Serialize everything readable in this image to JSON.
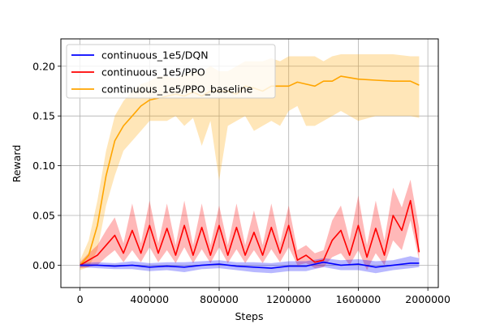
{
  "chart_data": {
    "type": "line",
    "xlabel": "Steps",
    "ylabel": "Reward",
    "xlim": [
      -110000,
      2060000
    ],
    "ylim": [
      -0.0225,
      0.2275
    ],
    "xticks": [
      0,
      400000,
      800000,
      1200000,
      1600000,
      2000000
    ],
    "xtick_labels": [
      "0",
      "400000",
      "800000",
      "1200000",
      "1600000",
      "2000000"
    ],
    "yticks": [
      0.0,
      0.05,
      0.1,
      0.15,
      0.2
    ],
    "ytick_labels": [
      "0.00",
      "0.05",
      "0.10",
      "0.15",
      "0.20"
    ],
    "grid": true,
    "legend_position": "top-left",
    "series": [
      {
        "name": "continuous_1e5/DQN",
        "color": "#0000ff",
        "band_color": "#0000ff",
        "x": [
          0,
          100000,
          200000,
          300000,
          400000,
          500000,
          600000,
          700000,
          800000,
          900000,
          1000000,
          1100000,
          1200000,
          1300000,
          1400000,
          1500000,
          1600000,
          1700000,
          1800000,
          1900000,
          1950000
        ],
        "y": [
          0.0,
          0.0,
          -0.001,
          0.0,
          -0.002,
          -0.001,
          -0.002,
          0.0,
          0.001,
          -0.001,
          -0.002,
          -0.003,
          -0.001,
          -0.001,
          0.003,
          0.0,
          0.001,
          -0.002,
          0.0,
          0.002,
          0.002
        ],
        "lower": [
          -0.002,
          -0.003,
          -0.004,
          -0.004,
          -0.006,
          -0.005,
          -0.007,
          -0.004,
          -0.003,
          -0.005,
          -0.007,
          -0.008,
          -0.006,
          -0.006,
          -0.002,
          -0.005,
          -0.005,
          -0.008,
          -0.005,
          -0.003,
          -0.002
        ],
        "upper": [
          0.002,
          0.003,
          0.002,
          0.004,
          0.002,
          0.003,
          0.003,
          0.004,
          0.005,
          0.003,
          0.003,
          0.002,
          0.004,
          0.004,
          0.007,
          0.005,
          0.006,
          0.004,
          0.005,
          0.009,
          0.007
        ]
      },
      {
        "name": "continuous_1e5/PPO",
        "color": "#ff0000",
        "band_color": "#ff0000",
        "x": [
          0,
          50000,
          100000,
          150000,
          200000,
          250000,
          300000,
          350000,
          400000,
          450000,
          500000,
          550000,
          600000,
          650000,
          700000,
          750000,
          800000,
          850000,
          900000,
          950000,
          1000000,
          1050000,
          1100000,
          1150000,
          1200000,
          1250000,
          1300000,
          1350000,
          1400000,
          1450000,
          1500000,
          1550000,
          1600000,
          1650000,
          1700000,
          1750000,
          1800000,
          1850000,
          1900000,
          1950000
        ],
        "y": [
          0.0,
          0.005,
          0.01,
          0.02,
          0.03,
          0.012,
          0.035,
          0.012,
          0.04,
          0.012,
          0.037,
          0.01,
          0.04,
          0.01,
          0.038,
          0.01,
          0.04,
          0.01,
          0.038,
          0.01,
          0.033,
          0.01,
          0.038,
          0.012,
          0.04,
          0.005,
          0.01,
          0.003,
          0.005,
          0.025,
          0.035,
          0.01,
          0.04,
          0.008,
          0.037,
          0.01,
          0.05,
          0.035,
          0.065,
          0.013
        ],
        "lower": [
          -0.003,
          -0.002,
          0.0,
          0.008,
          0.015,
          0.003,
          0.015,
          0.003,
          0.018,
          0.003,
          0.015,
          0.002,
          0.018,
          0.002,
          0.016,
          0.002,
          0.018,
          0.002,
          0.016,
          0.002,
          0.015,
          0.002,
          0.016,
          0.003,
          0.018,
          0.0,
          0.002,
          -0.003,
          -0.002,
          0.008,
          0.012,
          0.0,
          0.015,
          -0.005,
          0.012,
          0.0,
          0.025,
          0.015,
          0.045,
          0.005
        ],
        "upper": [
          0.003,
          0.012,
          0.02,
          0.035,
          0.048,
          0.022,
          0.062,
          0.022,
          0.065,
          0.022,
          0.062,
          0.02,
          0.065,
          0.02,
          0.062,
          0.02,
          0.06,
          0.02,
          0.062,
          0.02,
          0.055,
          0.02,
          0.062,
          0.022,
          0.06,
          0.015,
          0.02,
          0.012,
          0.015,
          0.045,
          0.06,
          0.025,
          0.07,
          0.02,
          0.065,
          0.025,
          0.078,
          0.058,
          0.086,
          0.037
        ]
      },
      {
        "name": "continuous_1e5/PPO_baseline",
        "color": "#ffa500",
        "band_color": "#ffa500",
        "x": [
          0,
          50000,
          100000,
          150000,
          200000,
          250000,
          300000,
          350000,
          400000,
          450000,
          500000,
          550000,
          600000,
          650000,
          700000,
          750000,
          800000,
          850000,
          900000,
          950000,
          1000000,
          1050000,
          1100000,
          1150000,
          1200000,
          1250000,
          1300000,
          1350000,
          1400000,
          1450000,
          1500000,
          1600000,
          1700000,
          1800000,
          1900000,
          1950000
        ],
        "y": [
          0.0,
          0.01,
          0.04,
          0.09,
          0.125,
          0.14,
          0.15,
          0.16,
          0.166,
          0.168,
          0.17,
          0.172,
          0.17,
          0.174,
          0.17,
          0.175,
          0.175,
          0.175,
          0.172,
          0.18,
          0.178,
          0.175,
          0.18,
          0.18,
          0.18,
          0.184,
          0.182,
          0.18,
          0.185,
          0.185,
          0.19,
          0.187,
          0.186,
          0.185,
          0.185,
          0.181
        ],
        "lower": [
          -0.005,
          -0.002,
          0.015,
          0.06,
          0.09,
          0.115,
          0.125,
          0.135,
          0.145,
          0.145,
          0.145,
          0.15,
          0.14,
          0.148,
          0.12,
          0.145,
          0.085,
          0.14,
          0.145,
          0.15,
          0.135,
          0.14,
          0.145,
          0.14,
          0.155,
          0.16,
          0.14,
          0.14,
          0.145,
          0.15,
          0.155,
          0.145,
          0.15,
          0.15,
          0.15,
          0.148
        ],
        "upper": [
          0.005,
          0.025,
          0.065,
          0.115,
          0.15,
          0.165,
          0.175,
          0.182,
          0.185,
          0.19,
          0.19,
          0.188,
          0.192,
          0.195,
          0.195,
          0.2,
          0.195,
          0.195,
          0.2,
          0.205,
          0.205,
          0.205,
          0.208,
          0.205,
          0.21,
          0.21,
          0.21,
          0.21,
          0.205,
          0.21,
          0.212,
          0.212,
          0.212,
          0.212,
          0.21,
          0.21
        ]
      }
    ]
  }
}
